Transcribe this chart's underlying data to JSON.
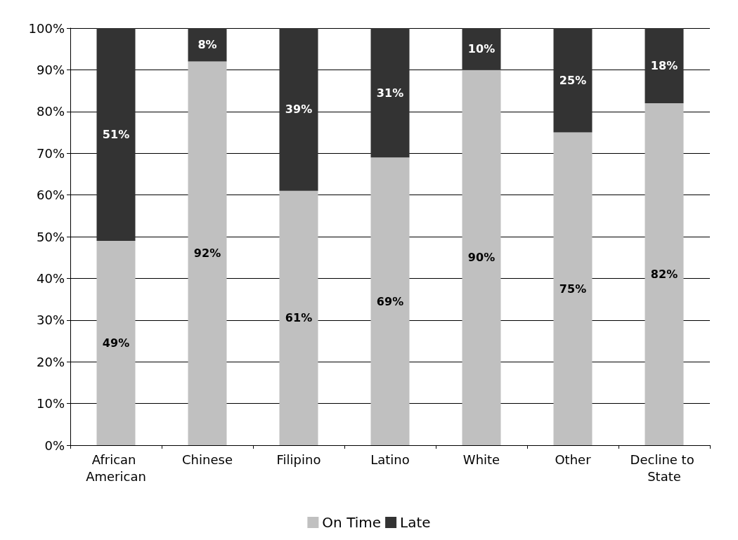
{
  "chart_data": {
    "type": "bar",
    "stacked": true,
    "categories": [
      "African American",
      "Chinese",
      "Filipino",
      "Latino",
      "White",
      "Other",
      "Decline to State"
    ],
    "series": [
      {
        "name": "On Time",
        "color": "#c0c0c0",
        "values": [
          49,
          92,
          61,
          69,
          90,
          75,
          82
        ],
        "value_labels": [
          "49%",
          "92%",
          "61%",
          "69%",
          "90%",
          "75%",
          "82%"
        ]
      },
      {
        "name": "Late",
        "color": "#333333",
        "values": [
          51,
          8,
          39,
          31,
          10,
          25,
          18
        ],
        "value_labels": [
          "51%",
          "8%",
          "39%",
          "31%",
          "10%",
          "25%",
          "18%"
        ]
      }
    ],
    "ylim": [
      0,
      100
    ],
    "yticks": [
      {
        "value": 0,
        "label": "0%"
      },
      {
        "value": 10,
        "label": "10%"
      },
      {
        "value": 20,
        "label": "20%"
      },
      {
        "value": 30,
        "label": "30%"
      },
      {
        "value": 40,
        "label": "40%"
      },
      {
        "value": 50,
        "label": "50%"
      },
      {
        "value": 60,
        "label": "60%"
      },
      {
        "value": 70,
        "label": "70%"
      },
      {
        "value": 80,
        "label": "80%"
      },
      {
        "value": 90,
        "label": "90%"
      },
      {
        "value": 100,
        "label": "100%"
      }
    ],
    "grid": "y",
    "legend": "bottom"
  }
}
